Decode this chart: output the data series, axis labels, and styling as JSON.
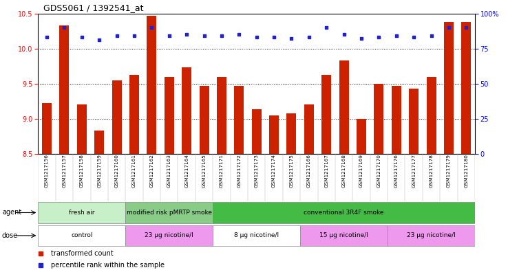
{
  "title": "GDS5061 / 1392541_at",
  "samples": [
    "GSM1217156",
    "GSM1217157",
    "GSM1217158",
    "GSM1217159",
    "GSM1217160",
    "GSM1217161",
    "GSM1217162",
    "GSM1217163",
    "GSM1217164",
    "GSM1217165",
    "GSM1217171",
    "GSM1217172",
    "GSM1217173",
    "GSM1217174",
    "GSM1217175",
    "GSM1217166",
    "GSM1217167",
    "GSM1217168",
    "GSM1217169",
    "GSM1217170",
    "GSM1217176",
    "GSM1217177",
    "GSM1217178",
    "GSM1217179",
    "GSM1217180"
  ],
  "transformed_counts": [
    9.22,
    10.33,
    9.2,
    8.83,
    9.55,
    9.63,
    10.47,
    9.6,
    9.73,
    9.47,
    9.6,
    9.47,
    9.14,
    9.05,
    9.08,
    9.2,
    9.63,
    9.83,
    9.0,
    9.5,
    9.47,
    9.43,
    9.6,
    10.38,
    10.38
  ],
  "percentile_ranks": [
    83,
    90,
    83,
    81,
    84,
    84,
    90,
    84,
    85,
    84,
    84,
    85,
    83,
    83,
    82,
    83,
    90,
    85,
    82,
    83,
    84,
    83,
    84,
    90,
    90
  ],
  "ylim_left": [
    8.5,
    10.5
  ],
  "ylim_right": [
    0,
    100
  ],
  "yticks_left": [
    8.5,
    9.0,
    9.5,
    10.0,
    10.5
  ],
  "yticks_right": [
    0,
    25,
    50,
    75,
    100
  ],
  "ytick_labels_right": [
    "0",
    "25",
    "50",
    "75",
    "100%"
  ],
  "agent_groups": [
    {
      "label": "fresh air",
      "start": 0,
      "end": 5,
      "color": "#C8F0C8"
    },
    {
      "label": "modified risk pMRTP smoke",
      "start": 5,
      "end": 10,
      "color": "#90D090"
    },
    {
      "label": "conventional 3R4F smoke",
      "start": 10,
      "end": 25,
      "color": "#55BB55"
    }
  ],
  "dose_groups": [
    {
      "label": "control",
      "start": 0,
      "end": 5,
      "color": "#FFFFFF"
    },
    {
      "label": "23 µg nicotine/l",
      "start": 5,
      "end": 10,
      "color": "#EE99EE"
    },
    {
      "label": "8 µg nicotine/l",
      "start": 10,
      "end": 15,
      "color": "#FFFFFF"
    },
    {
      "label": "15 µg nicotine/l",
      "start": 15,
      "end": 20,
      "color": "#EE99EE"
    },
    {
      "label": "23 µg nicotine/l",
      "start": 20,
      "end": 25,
      "color": "#EE99EE"
    }
  ],
  "bar_color": "#CC2200",
  "dot_color": "#2222CC",
  "bar_bottom": 8.5,
  "legend_items": [
    {
      "label": "transformed count",
      "color": "#CC2200"
    },
    {
      "label": "percentile rank within the sample",
      "color": "#2222CC"
    }
  ]
}
